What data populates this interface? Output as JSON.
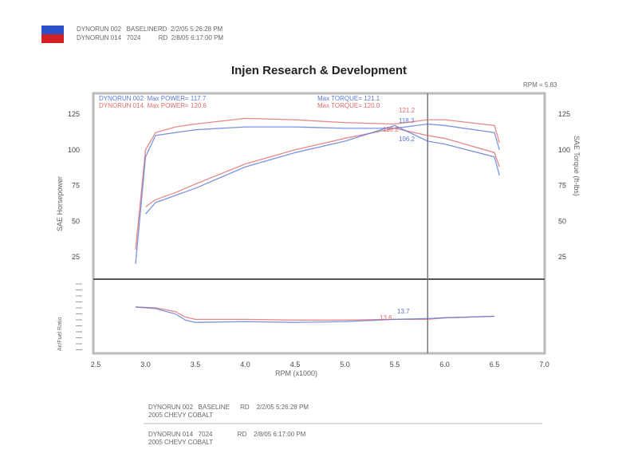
{
  "header": {
    "legend": [
      {
        "line": "DYNORUN 002   BASELINERD  2/2/05 5:26:28 PM",
        "color": "#2a4fc8"
      },
      {
        "line": "DYNORUN 014   7024          RD  2/8/05 6:17:00 PM",
        "color": "#d42020"
      }
    ]
  },
  "footer": {
    "runs": [
      {
        "line1": "DYNORUN 002   BASELINE      RD    2/2/05 5:26:28 PM",
        "line2": "2005 CHEVY COBALT"
      },
      {
        "line1": "DYNORUN 014   7024              RD    2/8/05 6:17:00 PM",
        "line2": "2005 CHEVY COBALT"
      }
    ]
  },
  "chart_data": {
    "type": "line",
    "title": "Injen Research & Development",
    "cursor_label": "RPM = 5.83",
    "cursor_x": 5.83,
    "xlabel": "RPM (x1000)",
    "ylabel_left": "SAE Horsepower",
    "ylabel_right": "SAE Torque (ft-lbs)",
    "ylabel_lower": "Air/Fuel Ratio",
    "xlim": [
      2.5,
      7.0
    ],
    "ylim": [
      10,
      135
    ],
    "xticks": [
      "2.5",
      "3.0",
      "3.5",
      "4.0",
      "4.5",
      "5.0",
      "5.5",
      "6.0",
      "6.5",
      "7.0"
    ],
    "yticks": [
      "25",
      "50",
      "75",
      "100",
      "125"
    ],
    "colors": {
      "baseline": "#5a78d8",
      "mod": "#e06a6a"
    },
    "annotations": {
      "b_power": "DYNORUN 002  Max POWER= 117.7",
      "m_power": "DYNORUN 014  Max POWER= 120.6",
      "b_torque": "Max TORQUE= 121.1",
      "m_torque": "Max TORQUE= 120.0"
    },
    "cursor_values": {
      "m_a": "121.2",
      "b_a": "118.3",
      "m_b": "110.2",
      "b_b": "106.2",
      "m_afr": "13.6",
      "b_afr": "13.7"
    },
    "x": [
      2.9,
      3.0,
      3.1,
      3.3,
      3.5,
      4.0,
      4.5,
      5.0,
      5.5,
      5.83,
      6.0,
      6.5,
      6.55
    ],
    "series": [
      {
        "run": "014",
        "kind": "upper",
        "values": [
          30,
          100,
          112,
          116,
          118,
          122,
          121,
          119,
          118,
          121,
          121,
          117,
          105
        ]
      },
      {
        "run": "002",
        "kind": "upper",
        "values": [
          20,
          95,
          110,
          112,
          114,
          116,
          116,
          115,
          115,
          118,
          117,
          112,
          100
        ]
      },
      {
        "run": "014",
        "kind": "lower",
        "values": [
          null,
          60,
          65,
          70,
          76,
          90,
          100,
          108,
          115,
          110,
          108,
          98,
          88
        ]
      },
      {
        "run": "002",
        "kind": "lower",
        "values": [
          null,
          55,
          63,
          68,
          73,
          88,
          98,
          106,
          117,
          106,
          104,
          95,
          82
        ]
      }
    ],
    "afr": {
      "ylim": [
        10,
        18
      ],
      "x": [
        2.9,
        3.1,
        3.3,
        3.4,
        3.5,
        4.0,
        4.5,
        5.0,
        5.5,
        5.83,
        6.0,
        6.5
      ],
      "series": [
        {
          "run": "014",
          "values": [
            15.2,
            15.1,
            14.6,
            13.9,
            13.6,
            13.6,
            13.5,
            13.5,
            13.6,
            13.6,
            13.8,
            14.0
          ]
        },
        {
          "run": "002",
          "values": [
            15.2,
            15.0,
            14.3,
            13.5,
            13.2,
            13.3,
            13.2,
            13.3,
            13.6,
            13.7,
            13.8,
            14.0
          ]
        }
      ]
    }
  }
}
